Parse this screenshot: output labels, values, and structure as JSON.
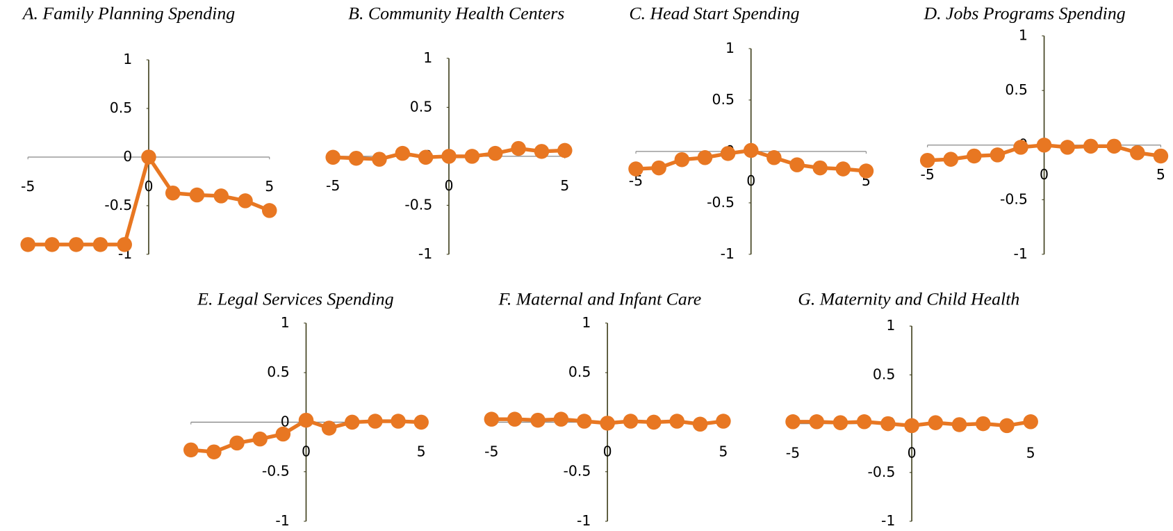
{
  "chart_data": [
    {
      "type": "line",
      "title": "A. Family Planning Spending",
      "color": "#e87722",
      "x": [
        -5,
        -4,
        -3,
        -2,
        -1,
        0,
        1,
        2,
        3,
        4,
        5
      ],
      "values": [
        -0.9,
        -0.9,
        -0.9,
        -0.9,
        -0.9,
        0,
        -0.37,
        -0.39,
        -0.4,
        -0.45,
        -0.55
      ],
      "xlim": [
        -5,
        5
      ],
      "xticks": [
        -5,
        0,
        5
      ],
      "ylim": [
        -1,
        1
      ],
      "yticks": [
        -1,
        -0.5,
        0,
        0.5,
        1
      ]
    },
    {
      "type": "line",
      "title": "B. Community Health Centers",
      "color": "#e87722",
      "x": [
        -5,
        -4,
        -3,
        -2,
        -1,
        0,
        1,
        2,
        3,
        4,
        5
      ],
      "values": [
        -0.01,
        -0.02,
        -0.03,
        0.03,
        -0.01,
        0,
        0,
        0.03,
        0.08,
        0.05,
        0.06
      ],
      "xlim": [
        -5,
        5
      ],
      "xticks": [
        -5,
        0,
        5
      ],
      "ylim": [
        -1,
        1
      ],
      "yticks": [
        -1,
        -0.5,
        0,
        0.5,
        1
      ]
    },
    {
      "type": "line",
      "title": "C. Head Start Spending",
      "color": "#e87722",
      "x": [
        -5,
        -4,
        -3,
        -2,
        -1,
        0,
        1,
        2,
        3,
        4,
        5
      ],
      "values": [
        -0.17,
        -0.16,
        -0.08,
        -0.06,
        -0.02,
        0.01,
        -0.06,
        -0.13,
        -0.16,
        -0.17,
        -0.19
      ],
      "xlim": [
        -5,
        5
      ],
      "xticks": [
        -5,
        0,
        5
      ],
      "ylim": [
        -1,
        1
      ],
      "yticks": [
        -1,
        -0.5,
        0,
        0.5,
        1
      ]
    },
    {
      "type": "line",
      "title": "D. Jobs Programs Spending",
      "color": "#e87722",
      "x": [
        -5,
        -4,
        -3,
        -2,
        -1,
        0,
        1,
        2,
        3,
        4,
        5
      ],
      "values": [
        -0.14,
        -0.13,
        -0.1,
        -0.09,
        -0.02,
        0,
        -0.02,
        -0.01,
        -0.01,
        -0.07,
        -0.1
      ],
      "xlim": [
        -5,
        5
      ],
      "xticks": [
        -5,
        0,
        5
      ],
      "ylim": [
        -1,
        1
      ],
      "yticks": [
        -1,
        -0.5,
        0,
        0.5,
        1
      ]
    },
    {
      "type": "line",
      "title": "E. Legal Services Spending",
      "color": "#e87722",
      "x": [
        -5,
        -4,
        -3,
        -2,
        -1,
        0,
        1,
        2,
        3,
        4,
        5
      ],
      "values": [
        -0.28,
        -0.3,
        -0.21,
        -0.17,
        -0.12,
        0.02,
        -0.06,
        0,
        0.01,
        0.01,
        0
      ],
      "xlim": [
        -5,
        5
      ],
      "xticks": [
        -5,
        0,
        5
      ],
      "ylim": [
        -1,
        1
      ],
      "yticks": [
        -1,
        -0.5,
        0,
        0.5,
        1
      ]
    },
    {
      "type": "line",
      "title": "F. Maternal and Infant Care",
      "color": "#e87722",
      "x": [
        -5,
        -4,
        -3,
        -2,
        -1,
        0,
        1,
        2,
        3,
        4,
        5
      ],
      "values": [
        0.03,
        0.03,
        0.02,
        0.03,
        0.01,
        -0.01,
        0.01,
        0,
        0.01,
        -0.02,
        0.01
      ],
      "xlim": [
        -5,
        5
      ],
      "xticks": [
        -5,
        0,
        5
      ],
      "ylim": [
        -1,
        1
      ],
      "yticks": [
        -1,
        -0.5,
        0,
        0.5,
        1
      ]
    },
    {
      "type": "line",
      "title": "G. Maternity and Child Health",
      "color": "#e87722",
      "x": [
        -5,
        -4,
        -3,
        -2,
        -1,
        0,
        1,
        2,
        3,
        4,
        5
      ],
      "values": [
        0.02,
        0.02,
        0.01,
        0.02,
        0,
        -0.02,
        0.01,
        -0.01,
        0,
        -0.02,
        0.02
      ],
      "xlim": [
        -5,
        5
      ],
      "xticks": [
        -5,
        0,
        5
      ],
      "ylim": [
        -1,
        1
      ],
      "yticks": [
        -1,
        -0.5,
        0,
        0.5,
        1
      ]
    }
  ]
}
